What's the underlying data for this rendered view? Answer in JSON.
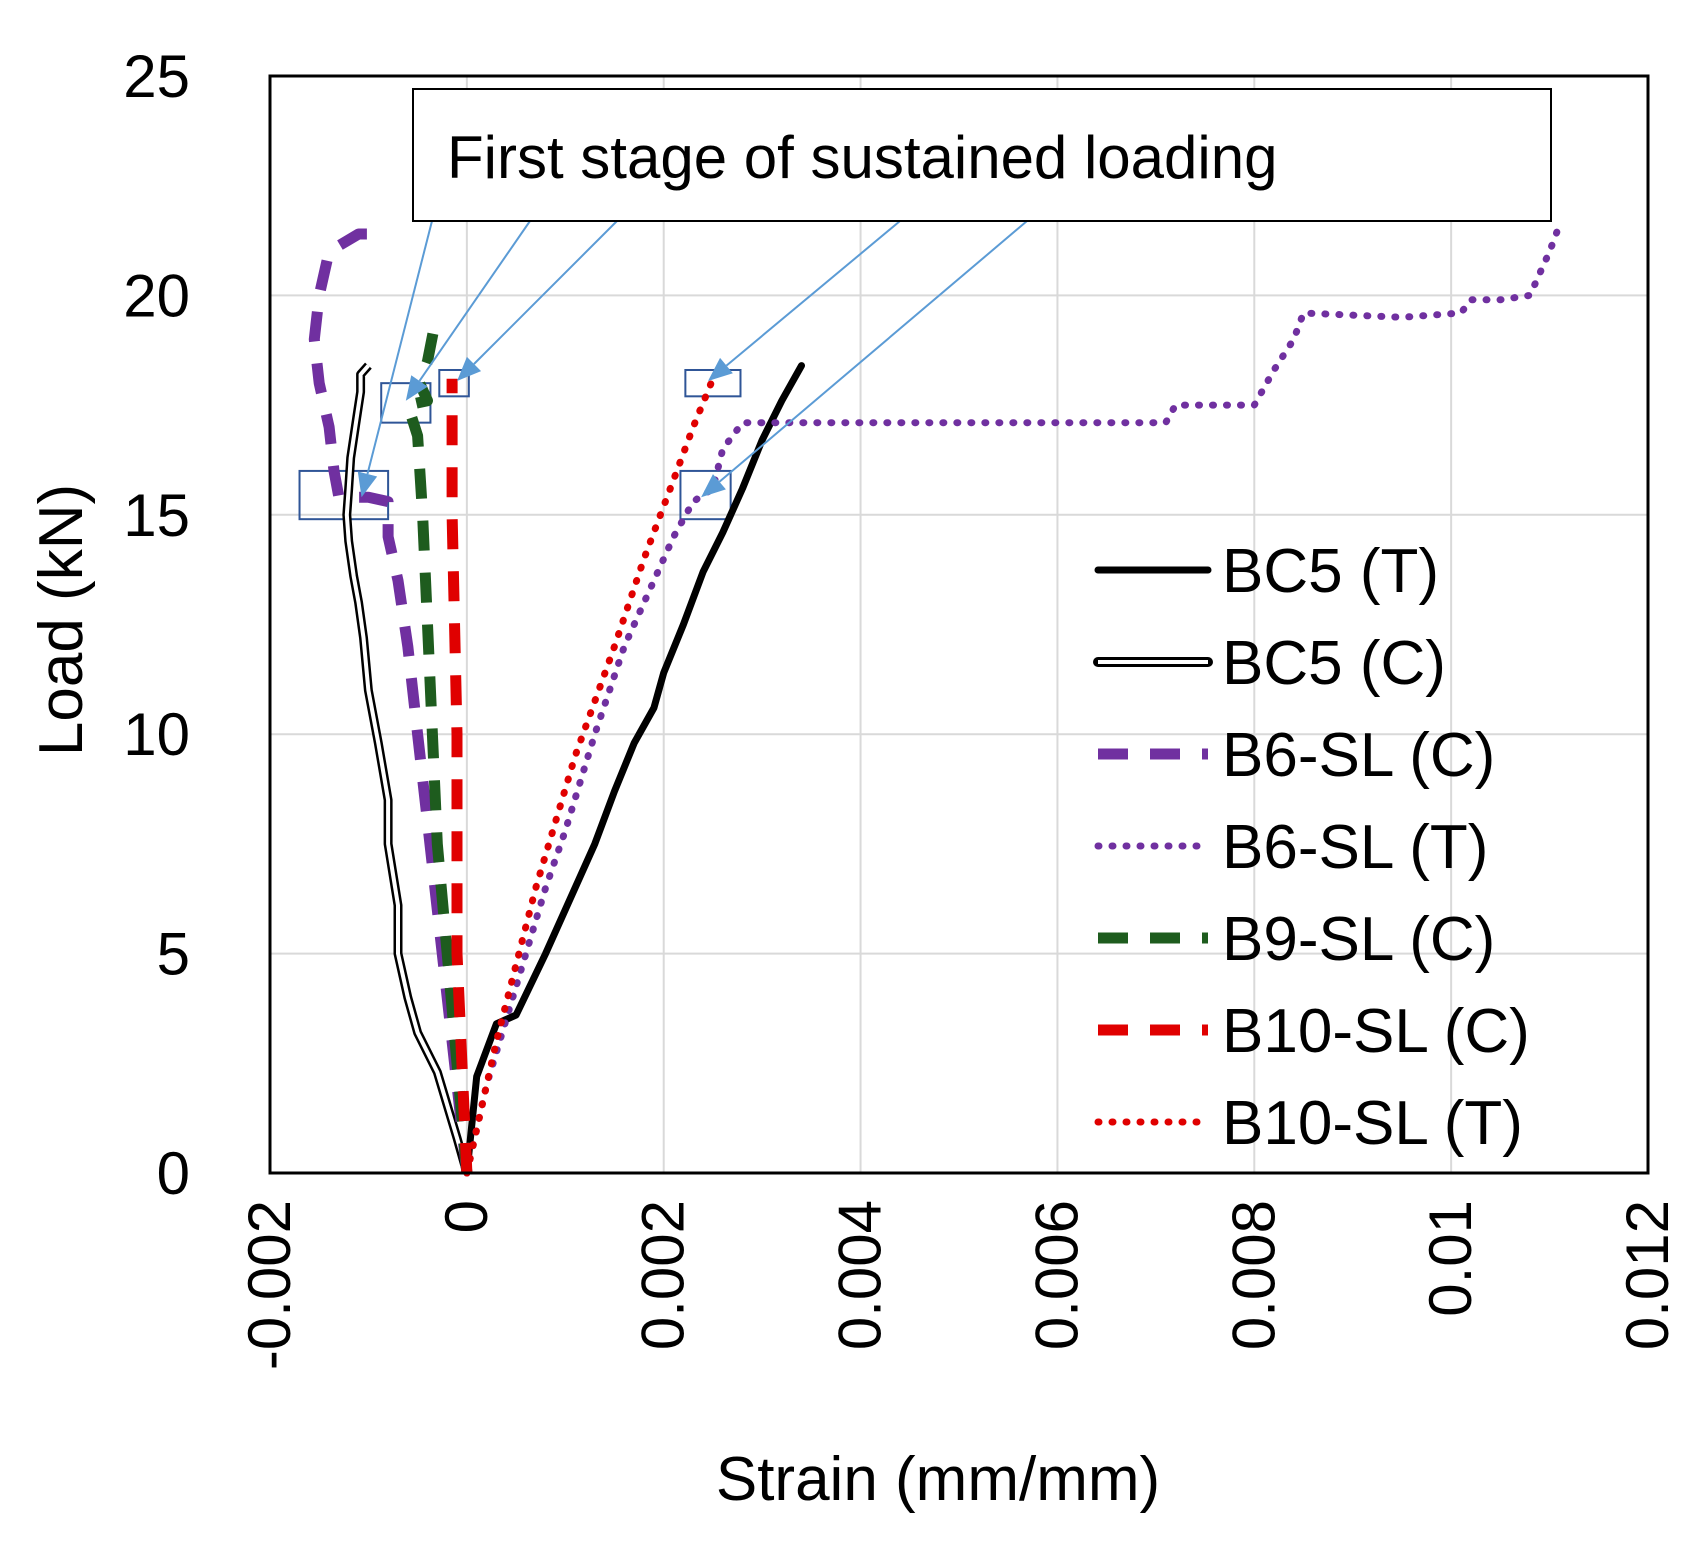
{
  "chart_data": {
    "type": "line",
    "title": "",
    "xlabel": "Strain (mm/mm)",
    "ylabel": "Load (kN)",
    "xlim": [
      -0.002,
      0.012
    ],
    "ylim": [
      0,
      25
    ],
    "xticks": [
      -0.002,
      0,
      0.002,
      0.004,
      0.006,
      0.008,
      0.01,
      0.012
    ],
    "xtick_labels": [
      "-0.002",
      "0",
      "0.002",
      "0.004",
      "0.006",
      "0.008",
      "0.01",
      "0.012"
    ],
    "yticks": [
      0,
      5,
      10,
      15,
      20,
      25
    ],
    "ytick_labels": [
      "0",
      "5",
      "10",
      "15",
      "20",
      "25"
    ],
    "grid": true,
    "legend_position": "right",
    "annotation": {
      "text": "First stage of sustained loading",
      "box_color": "#2f5597",
      "arrow_color": "#5b9bd5",
      "targets": [
        {
          "x": -0.00107,
          "y": 15.4
        },
        {
          "x": -0.00062,
          "y": 17.6
        },
        {
          "x": -0.0001,
          "y": 18.05
        },
        {
          "x": 0.00245,
          "y": 18.05
        },
        {
          "x": 0.00238,
          "y": 15.4
        }
      ],
      "highlight_boxes": [
        {
          "x0": -0.0017,
          "x1": -0.0008,
          "y0": 14.9,
          "y1": 16.0
        },
        {
          "x0": -0.00087,
          "x1": -0.00037,
          "y0": 17.1,
          "y1": 18.0
        },
        {
          "x0": -0.00028,
          "x1": 2e-05,
          "y0": 17.7,
          "y1": 18.3
        },
        {
          "x0": 0.00222,
          "x1": 0.00278,
          "y0": 17.7,
          "y1": 18.3
        },
        {
          "x0": 0.00217,
          "x1": 0.00268,
          "y0": 14.9,
          "y1": 16.0
        }
      ]
    },
    "series": [
      {
        "name": "BC5 (T)",
        "color": "#000000",
        "style": "solid",
        "points": [
          [
            0,
            0
          ],
          [
            0.0001,
            2.2
          ],
          [
            0.0003,
            3.4
          ],
          [
            0.0005,
            3.6
          ],
          [
            0.0008,
            5.0
          ],
          [
            0.001,
            6.0
          ],
          [
            0.0013,
            7.5
          ],
          [
            0.0015,
            8.7
          ],
          [
            0.0017,
            9.8
          ],
          [
            0.0019,
            10.6
          ],
          [
            0.002,
            11.4
          ],
          [
            0.0022,
            12.5
          ],
          [
            0.0024,
            13.7
          ],
          [
            0.0026,
            14.6
          ],
          [
            0.0028,
            15.6
          ],
          [
            0.003,
            16.7
          ],
          [
            0.0032,
            17.6
          ],
          [
            0.0034,
            18.4
          ]
        ]
      },
      {
        "name": "BC5 (C)",
        "color": "#000000",
        "style": "hollow",
        "points": [
          [
            0,
            0
          ],
          [
            -0.0001,
            0.8
          ],
          [
            -0.0003,
            2.3
          ],
          [
            -0.0005,
            3.2
          ],
          [
            -0.0006,
            4.0
          ],
          [
            -0.0007,
            5.0
          ],
          [
            -0.0007,
            6.1
          ],
          [
            -0.0008,
            7.5
          ],
          [
            -0.0008,
            8.5
          ],
          [
            -0.0009,
            9.8
          ],
          [
            -0.001,
            11.0
          ],
          [
            -0.00105,
            12.2
          ],
          [
            -0.0011,
            13.0
          ],
          [
            -0.00115,
            13.6
          ],
          [
            -0.0012,
            14.4
          ],
          [
            -0.00122,
            15.0
          ],
          [
            -0.0012,
            15.6
          ],
          [
            -0.00118,
            16.3
          ],
          [
            -0.00112,
            17.2
          ],
          [
            -0.00108,
            17.8
          ],
          [
            -0.00108,
            18.2
          ],
          [
            -0.001,
            18.4
          ]
        ]
      },
      {
        "name": "B6-SL (C)",
        "color": "#7030a0",
        "style": "dashed",
        "points": [
          [
            0,
            0
          ],
          [
            -0.0001,
            2.0
          ],
          [
            -0.0002,
            4.0
          ],
          [
            -0.0003,
            6.0
          ],
          [
            -0.0004,
            8.0
          ],
          [
            -0.0005,
            10.0
          ],
          [
            -0.0006,
            12.0
          ],
          [
            -0.0007,
            13.5
          ],
          [
            -0.0008,
            14.5
          ],
          [
            -0.0008,
            15.0
          ],
          [
            -0.0008,
            15.3
          ],
          [
            -0.001,
            15.4
          ],
          [
            -0.0013,
            15.4
          ],
          [
            -0.00135,
            16.0
          ],
          [
            -0.0014,
            17.0
          ],
          [
            -0.0015,
            18.0
          ],
          [
            -0.00155,
            19.0
          ],
          [
            -0.0015,
            20.0
          ],
          [
            -0.0014,
            21.0
          ],
          [
            -0.0011,
            21.4
          ],
          [
            -0.001,
            21.4
          ]
        ]
      },
      {
        "name": "B6-SL (T)",
        "color": "#7030a0",
        "style": "dotted",
        "points": [
          [
            0,
            0
          ],
          [
            0.0002,
            2.0
          ],
          [
            0.0004,
            3.5
          ],
          [
            0.0006,
            5.0
          ],
          [
            0.0008,
            6.5
          ],
          [
            0.001,
            7.8
          ],
          [
            0.0013,
            10.0
          ],
          [
            0.0016,
            12.0
          ],
          [
            0.0019,
            13.5
          ],
          [
            0.0021,
            14.5
          ],
          [
            0.0023,
            15.3
          ],
          [
            0.0025,
            15.6
          ],
          [
            0.0026,
            16.5
          ],
          [
            0.0028,
            17.1
          ],
          [
            0.004,
            17.1
          ],
          [
            0.006,
            17.1
          ],
          [
            0.0071,
            17.1
          ],
          [
            0.0072,
            17.5
          ],
          [
            0.008,
            17.5
          ],
          [
            0.0082,
            18.3
          ],
          [
            0.0084,
            19.0
          ],
          [
            0.0085,
            19.6
          ],
          [
            0.0095,
            19.5
          ],
          [
            0.0101,
            19.6
          ],
          [
            0.0102,
            19.9
          ],
          [
            0.0105,
            19.9
          ],
          [
            0.0108,
            20.0
          ],
          [
            0.0109,
            20.5
          ],
          [
            0.011,
            21.0
          ],
          [
            0.0111,
            21.6
          ]
        ]
      },
      {
        "name": "B9-SL (C)",
        "color": "#1e5c1e",
        "style": "dashed",
        "points": [
          [
            0,
            0
          ],
          [
            -0.0001,
            2.5
          ],
          [
            -0.0002,
            5.0
          ],
          [
            -0.0003,
            7.5
          ],
          [
            -0.00035,
            10.0
          ],
          [
            -0.0004,
            12.5
          ],
          [
            -0.00045,
            15.0
          ],
          [
            -0.0005,
            16.8
          ],
          [
            -0.0006,
            17.5
          ],
          [
            -0.0004,
            17.6
          ],
          [
            -0.00048,
            18.0
          ],
          [
            -0.0004,
            18.5
          ],
          [
            -0.00033,
            19.3
          ]
        ]
      },
      {
        "name": "B10-SL (C)",
        "color": "#e00000",
        "style": "dashed",
        "points": [
          [
            0,
            0
          ],
          [
            -5e-05,
            2.5
          ],
          [
            -0.0001,
            5.0
          ],
          [
            -0.0001,
            10.0
          ],
          [
            -0.00015,
            15.0
          ],
          [
            -0.00015,
            18.1
          ]
        ]
      },
      {
        "name": "B10-SL (T)",
        "color": "#e00000",
        "style": "dotted",
        "points": [
          [
            0,
            0
          ],
          [
            0.0003,
            3.0
          ],
          [
            0.0007,
            6.5
          ],
          [
            0.0011,
            9.5
          ],
          [
            0.0015,
            12.0
          ],
          [
            0.0018,
            14.0
          ],
          [
            0.0021,
            15.8
          ],
          [
            0.0023,
            17.0
          ],
          [
            0.0025,
            18.1
          ]
        ]
      }
    ]
  }
}
